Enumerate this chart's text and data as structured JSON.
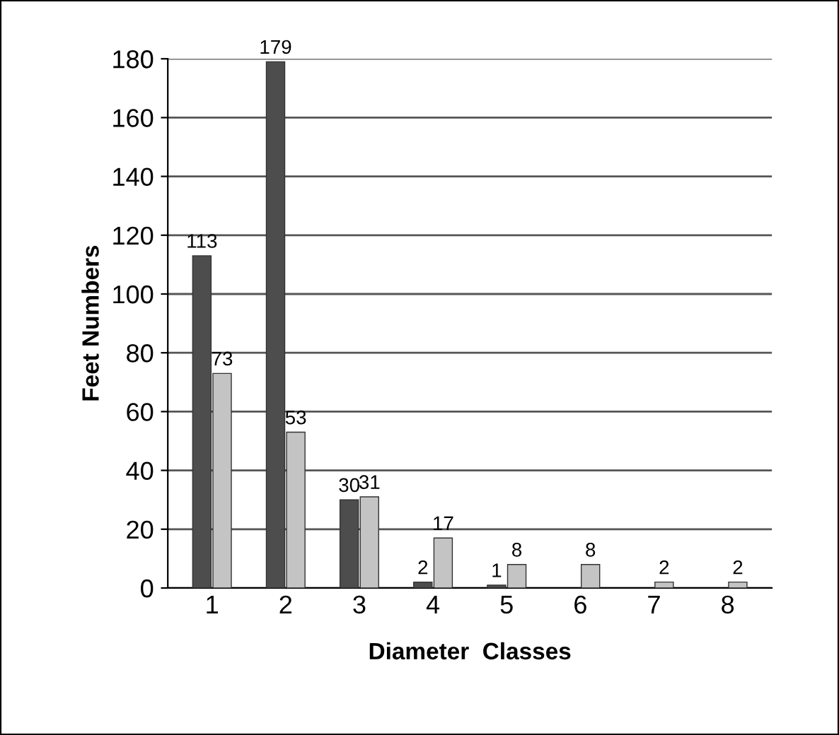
{
  "chart_data": {
    "type": "bar",
    "xlabel": "Diameter  Classes",
    "ylabel": "Feet Numbers",
    "categories": [
      "1",
      "2",
      "3",
      "4",
      "5",
      "6",
      "7",
      "8"
    ],
    "series": [
      {
        "color": "#4d4d4d",
        "values": [
          113,
          179,
          30,
          2,
          1,
          null,
          null,
          null
        ]
      },
      {
        "color": "#c4c4c4",
        "values": [
          73,
          53,
          31,
          17,
          8,
          8,
          2,
          2
        ]
      }
    ],
    "ylim": [
      0,
      180
    ],
    "yticks": [
      0,
      20,
      40,
      60,
      80,
      100,
      120,
      140,
      160,
      180
    ],
    "grid": "y",
    "data_labels": true
  }
}
